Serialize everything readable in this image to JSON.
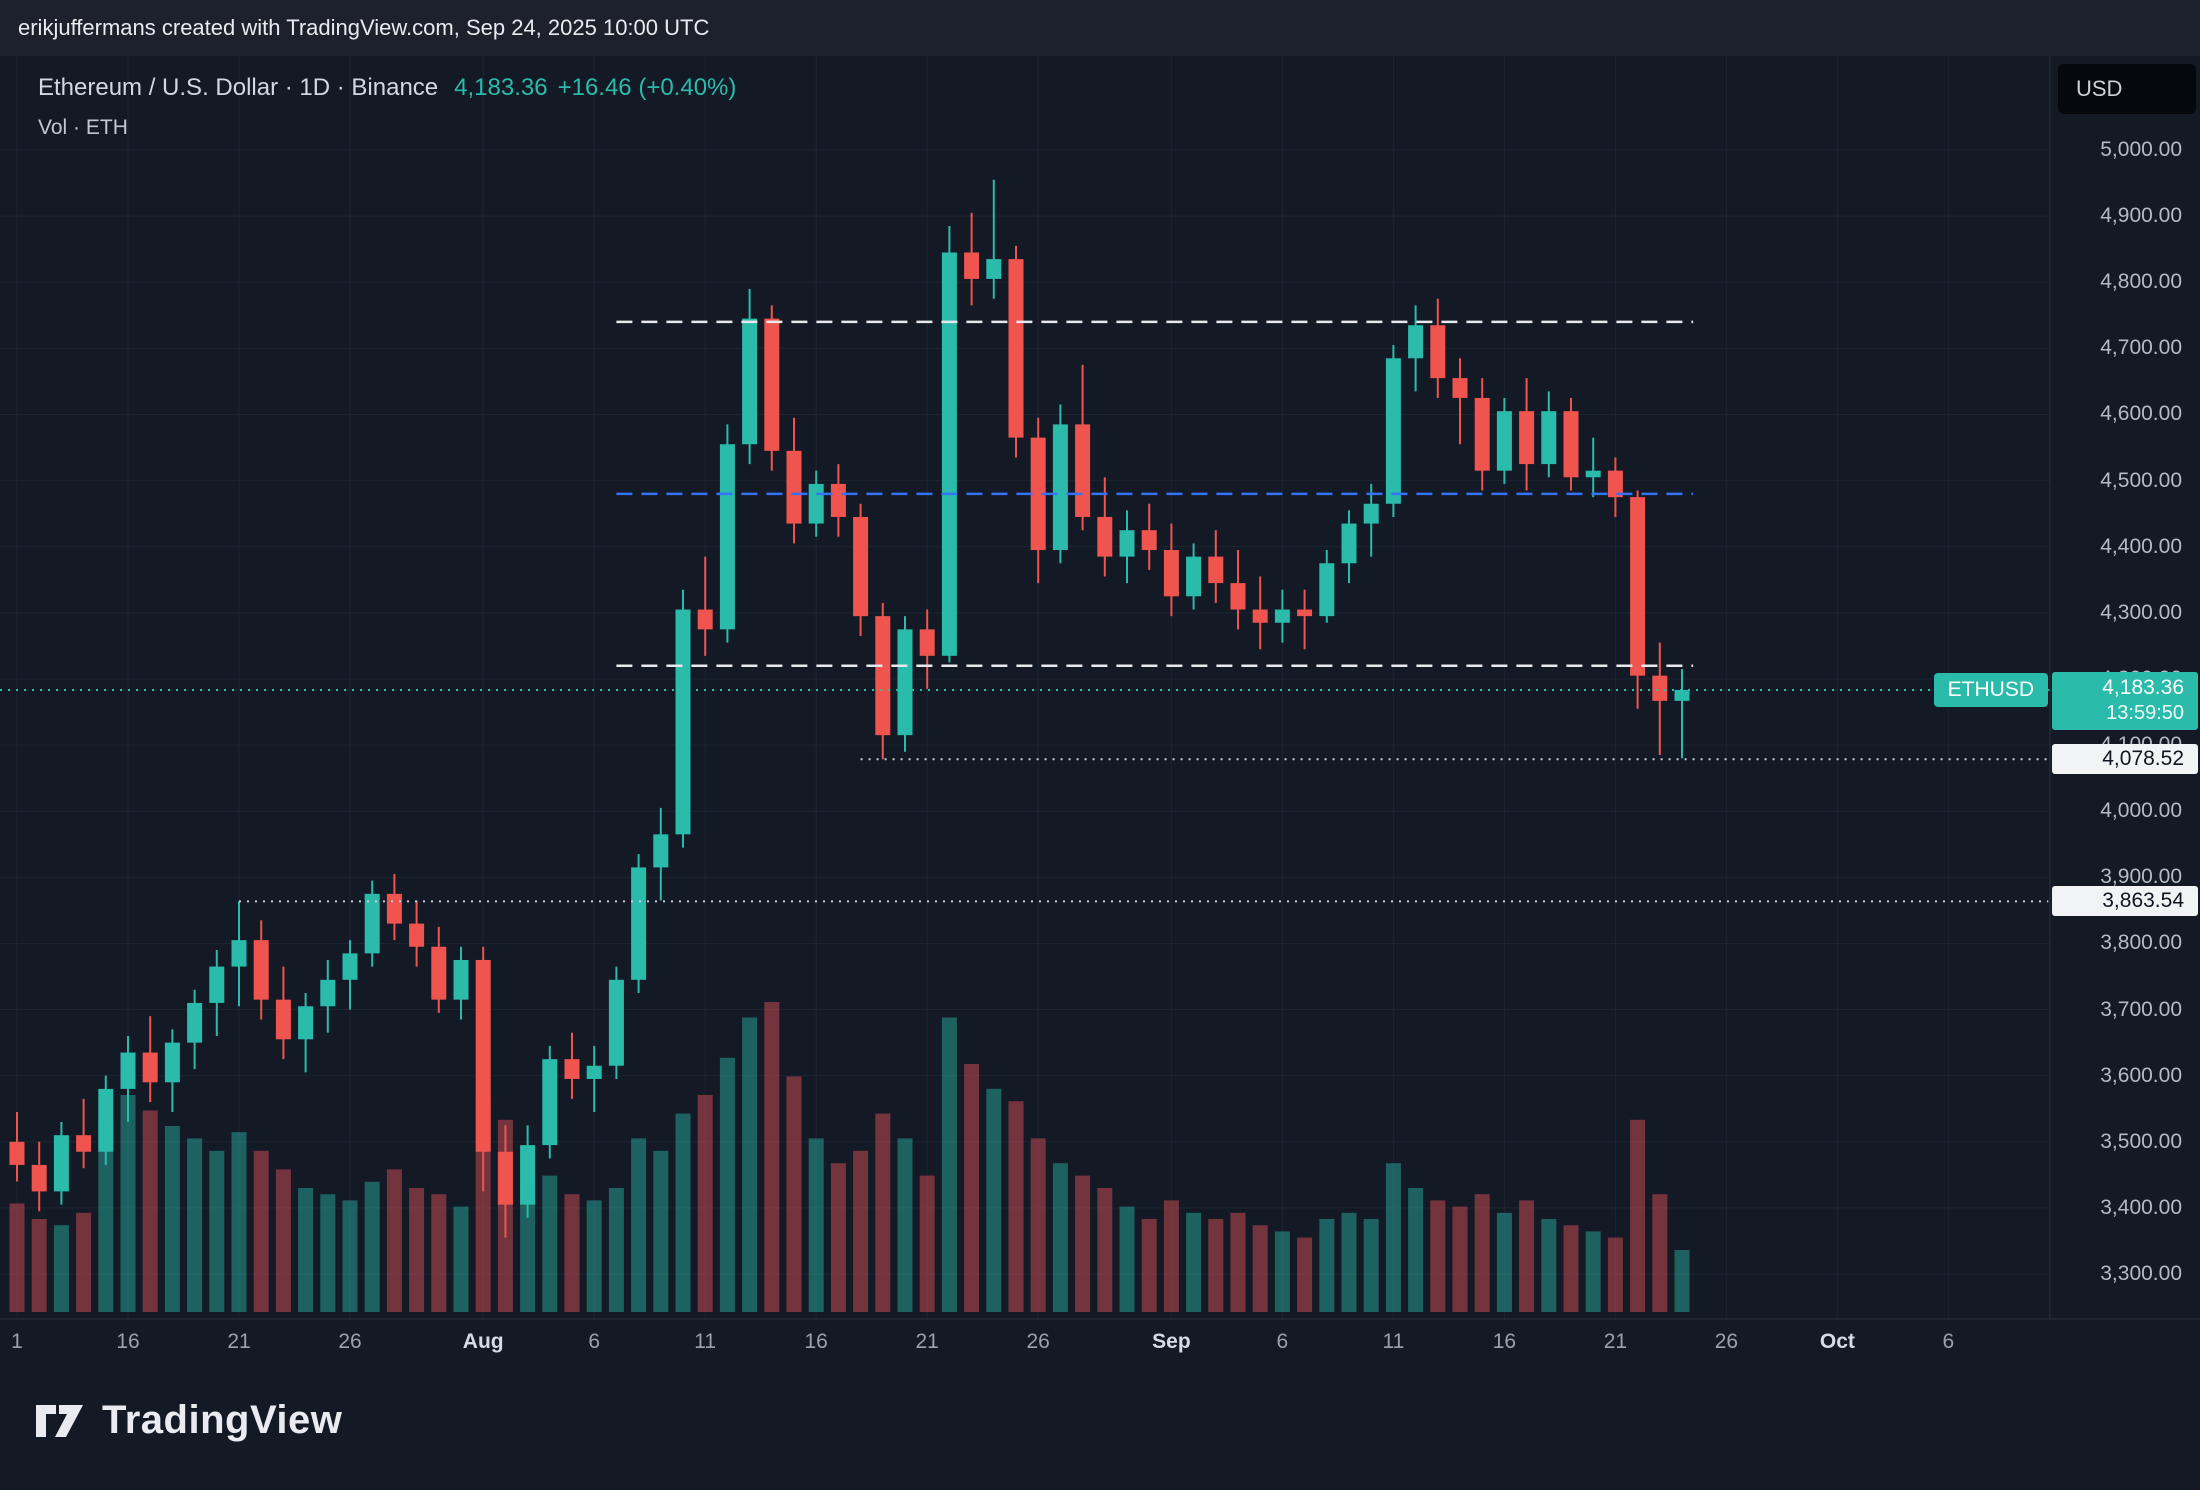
{
  "top_bar": {
    "attribution": "erikjuffermans created with TradingView.com, Sep 24, 2025 10:00 UTC"
  },
  "header": {
    "title": "Ethereum / U.S. Dollar · 1D · Binance",
    "price": "4,183.36",
    "change": "+16.46 (+0.40%)",
    "indicator": "Vol · ETH"
  },
  "currency_button": {
    "label": "USD"
  },
  "price_axis": {
    "ticks": [
      {
        "label": "5,000.00",
        "value": 5000
      },
      {
        "label": "4,900.00",
        "value": 4900
      },
      {
        "label": "4,800.00",
        "value": 4800
      },
      {
        "label": "4,700.00",
        "value": 4700
      },
      {
        "label": "4,600.00",
        "value": 4600
      },
      {
        "label": "4,500.00",
        "value": 4500
      },
      {
        "label": "4,400.00",
        "value": 4400
      },
      {
        "label": "4,300.00",
        "value": 4300
      },
      {
        "label": "4,200.00",
        "value": 4200
      },
      {
        "label": "4,100.00",
        "value": 4100
      },
      {
        "label": "4,000.00",
        "value": 4000
      },
      {
        "label": "3,900.00",
        "value": 3900
      },
      {
        "label": "3,800.00",
        "value": 3800
      },
      {
        "label": "3,700.00",
        "value": 3700
      },
      {
        "label": "3,600.00",
        "value": 3600
      },
      {
        "label": "3,500.00",
        "value": 3500
      },
      {
        "label": "3,400.00",
        "value": 3400
      },
      {
        "label": "3,300.00",
        "value": 3300
      }
    ]
  },
  "time_axis": {
    "ticks": [
      {
        "label": "1",
        "index": 0,
        "type": "day"
      },
      {
        "label": "16",
        "index": 5,
        "type": "day"
      },
      {
        "label": "21",
        "index": 10,
        "type": "day"
      },
      {
        "label": "26",
        "index": 15,
        "type": "day"
      },
      {
        "label": "Aug",
        "index": 21,
        "type": "month"
      },
      {
        "label": "6",
        "index": 26,
        "type": "day"
      },
      {
        "label": "11",
        "index": 31,
        "type": "day"
      },
      {
        "label": "16",
        "index": 36,
        "type": "day"
      },
      {
        "label": "21",
        "index": 41,
        "type": "day"
      },
      {
        "label": "26",
        "index": 46,
        "type": "day"
      },
      {
        "label": "Sep",
        "index": 52,
        "type": "month"
      },
      {
        "label": "6",
        "index": 57,
        "type": "day"
      },
      {
        "label": "11",
        "index": 62,
        "type": "day"
      },
      {
        "label": "16",
        "index": 67,
        "type": "day"
      },
      {
        "label": "21",
        "index": 72,
        "type": "day"
      },
      {
        "label": "26",
        "index": 77,
        "type": "day"
      },
      {
        "label": "Oct",
        "index": 82,
        "type": "month"
      },
      {
        "label": "6",
        "index": 87,
        "type": "day"
      }
    ]
  },
  "badges": {
    "symbol_chip": "ETHUSD",
    "price_label": "4,183.36",
    "countdown": "13:59:50",
    "price_value": 4183.36,
    "levels": [
      {
        "label": "4,078.52",
        "value": 4078.52
      },
      {
        "label": "3,863.54",
        "value": 3863.54
      }
    ]
  },
  "footer": {
    "brand": "TradingView"
  },
  "chart_data": {
    "type": "candlestick",
    "title": "Ethereum / U.S. Dollar · 1D · Binance",
    "symbol": "ETHUSD",
    "exchange": "Binance",
    "interval": "1D",
    "last_price": 4183.36,
    "change": 16.46,
    "change_pct": 0.4,
    "ylim": [
      3250,
      5060
    ],
    "price_grid_step": 100,
    "legend": "Vol · ETH",
    "volume_unit": "k ETH (estimated relative)",
    "colors": {
      "up": "#2abbaa",
      "down": "#f0544f",
      "vol_up": "rgba(42,187,170,0.45)",
      "vol_down": "rgba(214,77,86,0.5)",
      "last_line": "#2abbaa",
      "blue_line": "#3472f7",
      "white_line": "#e8e9ed",
      "dotted_line": "#c9ccd6"
    },
    "candles": [
      [
        "Jul 11",
        3500,
        3545,
        3440,
        3465,
        350
      ],
      [
        "Jul 12",
        3465,
        3500,
        3395,
        3425,
        300
      ],
      [
        "Jul 13",
        3425,
        3530,
        3405,
        3510,
        280
      ],
      [
        "Jul 14",
        3510,
        3565,
        3460,
        3485,
        320
      ],
      [
        "Jul 15",
        3485,
        3600,
        3465,
        3580,
        620
      ],
      [
        "Jul 16",
        3580,
        3660,
        3530,
        3635,
        700
      ],
      [
        "Jul 17",
        3635,
        3690,
        3560,
        3590,
        650
      ],
      [
        "Jul 18",
        3590,
        3670,
        3545,
        3650,
        600
      ],
      [
        "Jul 19",
        3650,
        3730,
        3610,
        3710,
        560
      ],
      [
        "Jul 20",
        3710,
        3790,
        3660,
        3765,
        520
      ],
      [
        "Jul 21",
        3765,
        3863.54,
        3705,
        3805,
        580
      ],
      [
        "Jul 22",
        3805,
        3835,
        3685,
        3715,
        520
      ],
      [
        "Jul 23",
        3715,
        3765,
        3625,
        3655,
        460
      ],
      [
        "Jul 24",
        3655,
        3725,
        3605,
        3705,
        400
      ],
      [
        "Jul 25",
        3705,
        3775,
        3665,
        3745,
        380
      ],
      [
        "Jul 26",
        3745,
        3805,
        3700,
        3785,
        360
      ],
      [
        "Jul 27",
        3785,
        3895,
        3765,
        3875,
        420
      ],
      [
        "Jul 28",
        3875,
        3905,
        3805,
        3830,
        460
      ],
      [
        "Jul 29",
        3830,
        3865,
        3765,
        3795,
        400
      ],
      [
        "Jul 30",
        3795,
        3825,
        3695,
        3715,
        380
      ],
      [
        "Jul 31",
        3715,
        3795,
        3685,
        3775,
        340
      ],
      [
        "Aug 1",
        3775,
        3795,
        3425,
        3485,
        680
      ],
      [
        "Aug 2",
        3485,
        3525,
        3355,
        3405,
        620
      ],
      [
        "Aug 3",
        3405,
        3525,
        3385,
        3495,
        420
      ],
      [
        "Aug 4",
        3495,
        3645,
        3475,
        3625,
        440
      ],
      [
        "Aug 5",
        3625,
        3665,
        3565,
        3595,
        380
      ],
      [
        "Aug 6",
        3595,
        3645,
        3545,
        3615,
        360
      ],
      [
        "Aug 7",
        3615,
        3765,
        3595,
        3745,
        400
      ],
      [
        "Aug 8",
        3745,
        3935,
        3725,
        3915,
        560
      ],
      [
        "Aug 9",
        3915,
        4005,
        3865,
        3965,
        520
      ],
      [
        "Aug 10",
        3965,
        4335,
        3945,
        4305,
        640
      ],
      [
        "Aug 11",
        4305,
        4385,
        4235,
        4275,
        700
      ],
      [
        "Aug 12",
        4275,
        4585,
        4255,
        4555,
        820
      ],
      [
        "Aug 13",
        4555,
        4790,
        4525,
        4745,
        950
      ],
      [
        "Aug 14",
        4745,
        4765,
        4515,
        4545,
        1000
      ],
      [
        "Aug 15",
        4545,
        4595,
        4405,
        4435,
        760
      ],
      [
        "Aug 16",
        4435,
        4515,
        4415,
        4495,
        560
      ],
      [
        "Aug 17",
        4495,
        4525,
        4415,
        4445,
        480
      ],
      [
        "Aug 18",
        4445,
        4465,
        4265,
        4295,
        520
      ],
      [
        "Aug 19",
        4295,
        4315,
        4078.52,
        4115,
        640
      ],
      [
        "Aug 20",
        4115,
        4295,
        4090,
        4275,
        560
      ],
      [
        "Aug 21",
        4275,
        4305,
        4185,
        4235,
        440
      ],
      [
        "Aug 22",
        4235,
        4885,
        4225,
        4845,
        950
      ],
      [
        "Aug 23",
        4845,
        4905,
        4765,
        4805,
        800
      ],
      [
        "Aug 24",
        4805,
        4955,
        4775,
        4835,
        720
      ],
      [
        "Aug 25",
        4835,
        4855,
        4535,
        4565,
        680
      ],
      [
        "Aug 26",
        4565,
        4595,
        4345,
        4395,
        560
      ],
      [
        "Aug 27",
        4395,
        4615,
        4375,
        4585,
        480
      ],
      [
        "Aug 28",
        4585,
        4675,
        4425,
        4445,
        440
      ],
      [
        "Aug 29",
        4445,
        4505,
        4355,
        4385,
        400
      ],
      [
        "Aug 30",
        4385,
        4455,
        4345,
        4425,
        340
      ],
      [
        "Aug 31",
        4425,
        4465,
        4365,
        4395,
        300
      ],
      [
        "Sep 1",
        4395,
        4435,
        4295,
        4325,
        360
      ],
      [
        "Sep 2",
        4325,
        4405,
        4305,
        4385,
        320
      ],
      [
        "Sep 3",
        4385,
        4425,
        4315,
        4345,
        300
      ],
      [
        "Sep 4",
        4345,
        4395,
        4275,
        4305,
        320
      ],
      [
        "Sep 5",
        4305,
        4355,
        4245,
        4285,
        280
      ],
      [
        "Sep 6",
        4285,
        4335,
        4255,
        4305,
        260
      ],
      [
        "Sep 7",
        4305,
        4335,
        4245,
        4295,
        240
      ],
      [
        "Sep 8",
        4295,
        4395,
        4285,
        4375,
        300
      ],
      [
        "Sep 9",
        4375,
        4455,
        4345,
        4435,
        320
      ],
      [
        "Sep 10",
        4435,
        4495,
        4385,
        4465,
        300
      ],
      [
        "Sep 11",
        4465,
        4705,
        4445,
        4685,
        480
      ],
      [
        "Sep 12",
        4685,
        4765,
        4635,
        4735,
        400
      ],
      [
        "Sep 13",
        4735,
        4775,
        4625,
        4655,
        360
      ],
      [
        "Sep 14",
        4655,
        4685,
        4555,
        4625,
        340
      ],
      [
        "Sep 15",
        4625,
        4655,
        4485,
        4515,
        380
      ],
      [
        "Sep 16",
        4515,
        4625,
        4495,
        4605,
        320
      ],
      [
        "Sep 17",
        4605,
        4655,
        4485,
        4525,
        360
      ],
      [
        "Sep 18",
        4525,
        4635,
        4505,
        4605,
        300
      ],
      [
        "Sep 19",
        4605,
        4625,
        4485,
        4505,
        280
      ],
      [
        "Sep 20",
        4505,
        4565,
        4475,
        4515,
        260
      ],
      [
        "Sep 21",
        4515,
        4535,
        4445,
        4475,
        240
      ],
      [
        "Sep 22",
        4475,
        4485,
        4155,
        4205,
        620
      ],
      [
        "Sep 23",
        4205,
        4255,
        4085,
        4166.9,
        380
      ],
      [
        "Sep 24",
        4166.9,
        4215,
        4080,
        4183.36,
        200
      ]
    ],
    "levels": [
      {
        "name": "range-high",
        "style": "dashed",
        "color": "#e8e9ed",
        "price": 4740,
        "from": 27,
        "to": 75.5
      },
      {
        "name": "mid-range",
        "style": "dashed",
        "color": "#3472f7",
        "price": 4480,
        "from": 27,
        "to": 75.5
      },
      {
        "name": "range-low",
        "style": "dashed",
        "color": "#e8e9ed",
        "price": 4220,
        "from": 27,
        "to": 75.5
      },
      {
        "name": "last-price-line",
        "style": "dotted",
        "color": "#2abbaa",
        "price": 4183.36,
        "full": true
      },
      {
        "name": "level-4078",
        "style": "dotted",
        "color": "#c9ccd6",
        "price": 4078.52,
        "from": 38,
        "to": 91.5
      },
      {
        "name": "level-3863",
        "style": "dotted",
        "color": "#c9ccd6",
        "price": 3863.54,
        "from": 10,
        "to": 91.5
      }
    ]
  }
}
